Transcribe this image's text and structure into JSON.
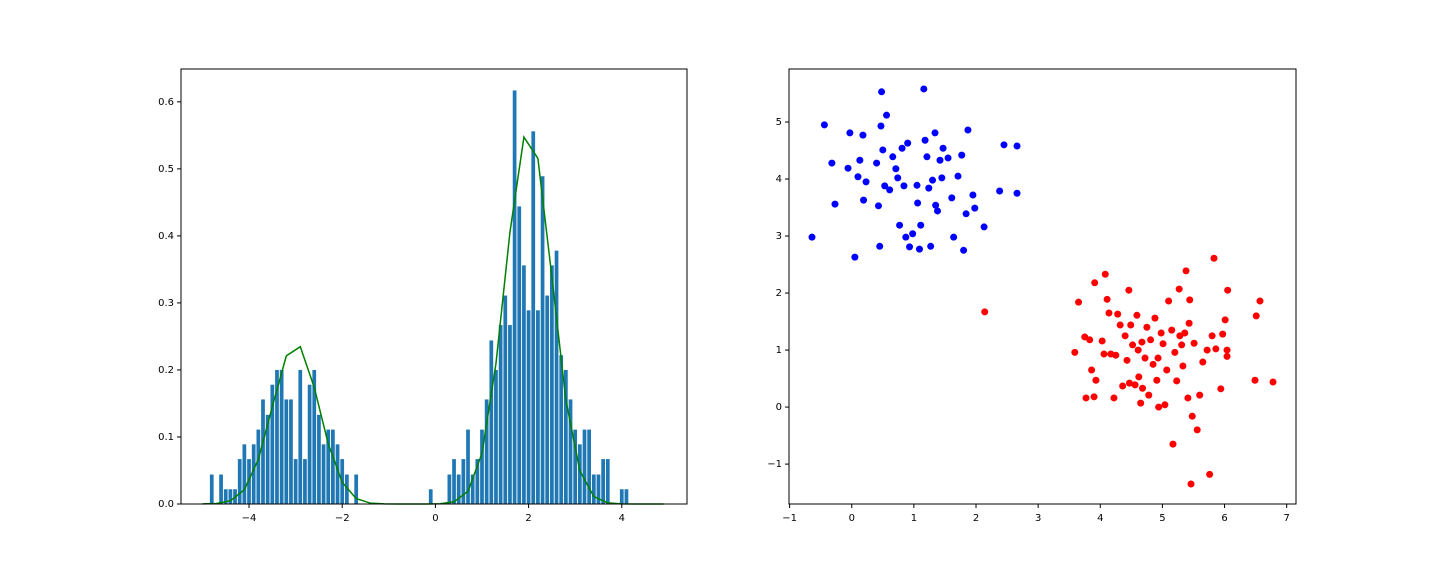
{
  "chart_data": [
    {
      "type": "histogram",
      "bins": [
        -4.85,
        -4.75,
        -4.65,
        -4.55,
        -4.45,
        -4.35,
        -4.25,
        -4.15,
        -4.05,
        -3.95,
        -3.85,
        -3.75,
        -3.65,
        -3.55,
        -3.45,
        -3.35,
        -3.25,
        -3.15,
        -3.05,
        -2.95,
        -2.85,
        -2.75,
        -2.65,
        -2.55,
        -2.45,
        -2.35,
        -2.25,
        -2.15,
        -2.05,
        -1.95,
        -1.85,
        -1.75,
        -1.65,
        -1.55,
        -1.45,
        -1.35,
        -1.25,
        -1.15,
        -1.05,
        -0.95,
        -0.85,
        -0.75,
        -0.65,
        -0.55,
        -0.45,
        -0.35,
        -0.25,
        -0.15,
        -0.05,
        0.05,
        0.15,
        0.25,
        0.35,
        0.45,
        0.55,
        0.65,
        0.75,
        0.85,
        0.95,
        1.05,
        1.15,
        1.25,
        1.35,
        1.45,
        1.55,
        1.65,
        1.75,
        1.85,
        1.95,
        2.05,
        2.15,
        2.25,
        2.35,
        2.45,
        2.55,
        2.65,
        2.75,
        2.85,
        2.95,
        3.05,
        3.15,
        3.25,
        3.35,
        3.45,
        3.55,
        3.65,
        3.75,
        3.85,
        3.95,
        4.05,
        4.15
      ],
      "values": [
        0.044,
        0,
        0.044,
        0.022,
        0.022,
        0.022,
        0.067,
        0.089,
        0.067,
        0.089,
        0.111,
        0.156,
        0.133,
        0.178,
        0.2,
        0.2,
        0.156,
        0.156,
        0.067,
        0.2,
        0.067,
        0.178,
        0.2,
        0.133,
        0.089,
        0.111,
        0.111,
        0.089,
        0.067,
        0.044,
        0,
        0.044,
        0,
        0,
        0,
        0,
        0,
        0,
        0,
        0,
        0,
        0,
        0,
        0,
        0,
        0,
        0,
        0.022,
        0,
        0,
        0,
        0.044,
        0.067,
        0.044,
        0.067,
        0.111,
        0.044,
        0.067,
        0.111,
        0.156,
        0.244,
        0.2,
        0.267,
        0.311,
        0.267,
        0.617,
        0.444,
        0.356,
        0.289,
        0.556,
        0.289,
        0.489,
        0.311,
        0.356,
        0.378,
        0.222,
        0.2,
        0.156,
        0.111,
        0.089,
        0.111,
        0.111,
        0.044,
        0.044,
        0.067,
        0.067,
        0,
        0,
        0.022,
        0.022
      ],
      "color": "#1f77b4",
      "lines": [
        {
          "color": "#008000",
          "x": [
            -5.0,
            -4.7,
            -4.4,
            -4.1,
            -3.8,
            -3.5,
            -3.2,
            -2.9,
            -2.6,
            -2.3,
            -2.0,
            -1.7,
            -1.4,
            -1.1,
            -0.8,
            -0.5,
            -0.2,
            0.1,
            0.4,
            0.7,
            1.0,
            1.3,
            1.6,
            1.9,
            2.2,
            2.5,
            2.8,
            3.1,
            3.4,
            3.7,
            4.0,
            4.3,
            4.6,
            4.9
          ],
          "values": [
            0.0001,
            0.0007,
            0.0047,
            0.0213,
            0.0666,
            0.1452,
            0.221,
            0.2347,
            0.1739,
            0.0898,
            0.0324,
            0.0081,
            0.0014,
            0.0002,
            0,
            0,
            0,
            0.0004,
            0.0033,
            0.019,
            0.0756,
            0.2096,
            0.4055,
            0.5474,
            0.5156,
            0.3388,
            0.1553,
            0.0497,
            0.0111,
            0.0017,
            0.0002,
            0,
            0,
            0
          ]
        }
      ],
      "xlim": [
        -5.46,
        5.4
      ],
      "ylim": [
        0,
        0.649
      ],
      "xticks": [
        {
          "value": -4,
          "label": "−4"
        },
        {
          "value": -2,
          "label": "−2"
        },
        0,
        2,
        4
      ],
      "yticks": [
        {
          "value": 0,
          "label": "0.0"
        },
        0.1,
        0.2,
        0.3,
        0.4,
        0.5,
        0.6
      ]
    },
    {
      "type": "scatter",
      "series": [
        {
          "color": "#0000ff",
          "x": [
            -0.64,
            -0.44,
            -0.32,
            -0.27,
            -0.03,
            0.05,
            -0.06,
            0.1,
            0.13,
            0.18,
            0.19,
            0.23,
            0.4,
            0.43,
            0.45,
            0.47,
            0.48,
            0.5,
            0.53,
            0.56,
            0.61,
            0.66,
            0.71,
            0.74,
            0.77,
            0.81,
            0.84,
            0.87,
            0.9,
            0.93,
            0.98,
            1.05,
            1.06,
            1.09,
            1.11,
            1.16,
            1.18,
            1.21,
            1.24,
            1.27,
            1.3,
            1.34,
            1.35,
            1.38,
            1.42,
            1.45,
            1.47,
            1.55,
            1.61,
            1.64,
            1.71,
            1.77,
            1.8,
            1.84,
            1.87,
            1.95,
            1.98,
            2.13,
            2.38,
            2.45,
            2.66,
            2.66
          ],
          "values": [
            2.98,
            4.95,
            4.28,
            3.56,
            4.81,
            2.63,
            4.19,
            4.04,
            4.33,
            4.77,
            3.63,
            3.95,
            4.28,
            3.53,
            2.82,
            4.93,
            5.53,
            4.51,
            3.88,
            5.12,
            3.81,
            4.39,
            4.18,
            4.02,
            3.19,
            4.54,
            3.88,
            2.98,
            4.63,
            2.81,
            3.04,
            3.89,
            3.58,
            2.77,
            3.19,
            5.58,
            4.68,
            4.39,
            3.84,
            2.82,
            3.98,
            4.81,
            3.54,
            3.44,
            4.33,
            4.02,
            4.54,
            4.37,
            3.67,
            2.98,
            4.05,
            4.42,
            2.75,
            3.39,
            4.86,
            3.72,
            3.49,
            3.16,
            3.79,
            4.6,
            4.58,
            3.75
          ]
        },
        {
          "color": "#ff0000",
          "x": [
            2.14,
            3.59,
            3.65,
            3.75,
            3.77,
            3.83,
            3.86,
            3.9,
            3.91,
            3.93,
            4.03,
            4.06,
            4.08,
            4.11,
            4.14,
            4.17,
            4.22,
            4.25,
            4.28,
            4.32,
            4.36,
            4.4,
            4.43,
            4.46,
            4.47,
            4.49,
            4.52,
            4.56,
            4.59,
            4.61,
            4.62,
            4.65,
            4.67,
            4.68,
            4.72,
            4.75,
            4.78,
            4.81,
            4.85,
            4.88,
            4.91,
            4.93,
            4.94,
            4.98,
            5.01,
            5.04,
            5.07,
            5.1,
            5.15,
            5.17,
            5.2,
            5.23,
            5.27,
            5.28,
            5.31,
            5.33,
            5.36,
            5.38,
            5.41,
            5.43,
            5.44,
            5.46,
            5.48,
            5.51,
            5.56,
            5.6,
            5.65,
            5.72,
            5.76,
            5.8,
            5.83,
            5.86,
            5.94,
            5.97,
            6.01,
            6.04,
            6.05,
            6.04,
            6.49,
            6.51,
            6.57,
            6.78
          ],
          "values": [
            1.67,
            0.96,
            1.84,
            1.23,
            0.16,
            1.18,
            0.65,
            0.18,
            2.18,
            0.47,
            1.16,
            0.93,
            2.33,
            1.89,
            1.65,
            0.93,
            0.16,
            0.91,
            1.63,
            1.44,
            0.37,
            1.25,
            0.82,
            2.05,
            0.42,
            1.44,
            1.09,
            0.39,
            1.61,
            1.0,
            0.53,
            0.07,
            1.14,
            0.33,
            0.86,
            1.4,
            0.21,
            1.18,
            0.75,
            1.56,
            0.47,
            0.86,
            0.0,
            1.3,
            1.11,
            0.04,
            0.65,
            1.86,
            1.35,
            -0.65,
            0.96,
            0.46,
            2.07,
            1.25,
            1.09,
            0.72,
            1.3,
            2.39,
            0.16,
            1.47,
            1.88,
            -1.35,
            -0.16,
            1.12,
            -0.4,
            0.21,
            0.79,
            1.0,
            -1.18,
            1.25,
            2.61,
            1.02,
            0.32,
            1.28,
            1.53,
            1.0,
            2.05,
            0.89,
            0.47,
            1.6,
            1.86,
            0.44
          ]
        }
      ],
      "xlim": [
        -1.01,
        7.15
      ],
      "ylim": [
        -1.7,
        5.93
      ],
      "xticks": [
        {
          "value": -1,
          "label": "−1"
        },
        0,
        1,
        2,
        3,
        4,
        5,
        6,
        7
      ],
      "yticks": [
        {
          "value": -1,
          "label": "−1"
        },
        0,
        1,
        2,
        3,
        4,
        5
      ]
    }
  ]
}
